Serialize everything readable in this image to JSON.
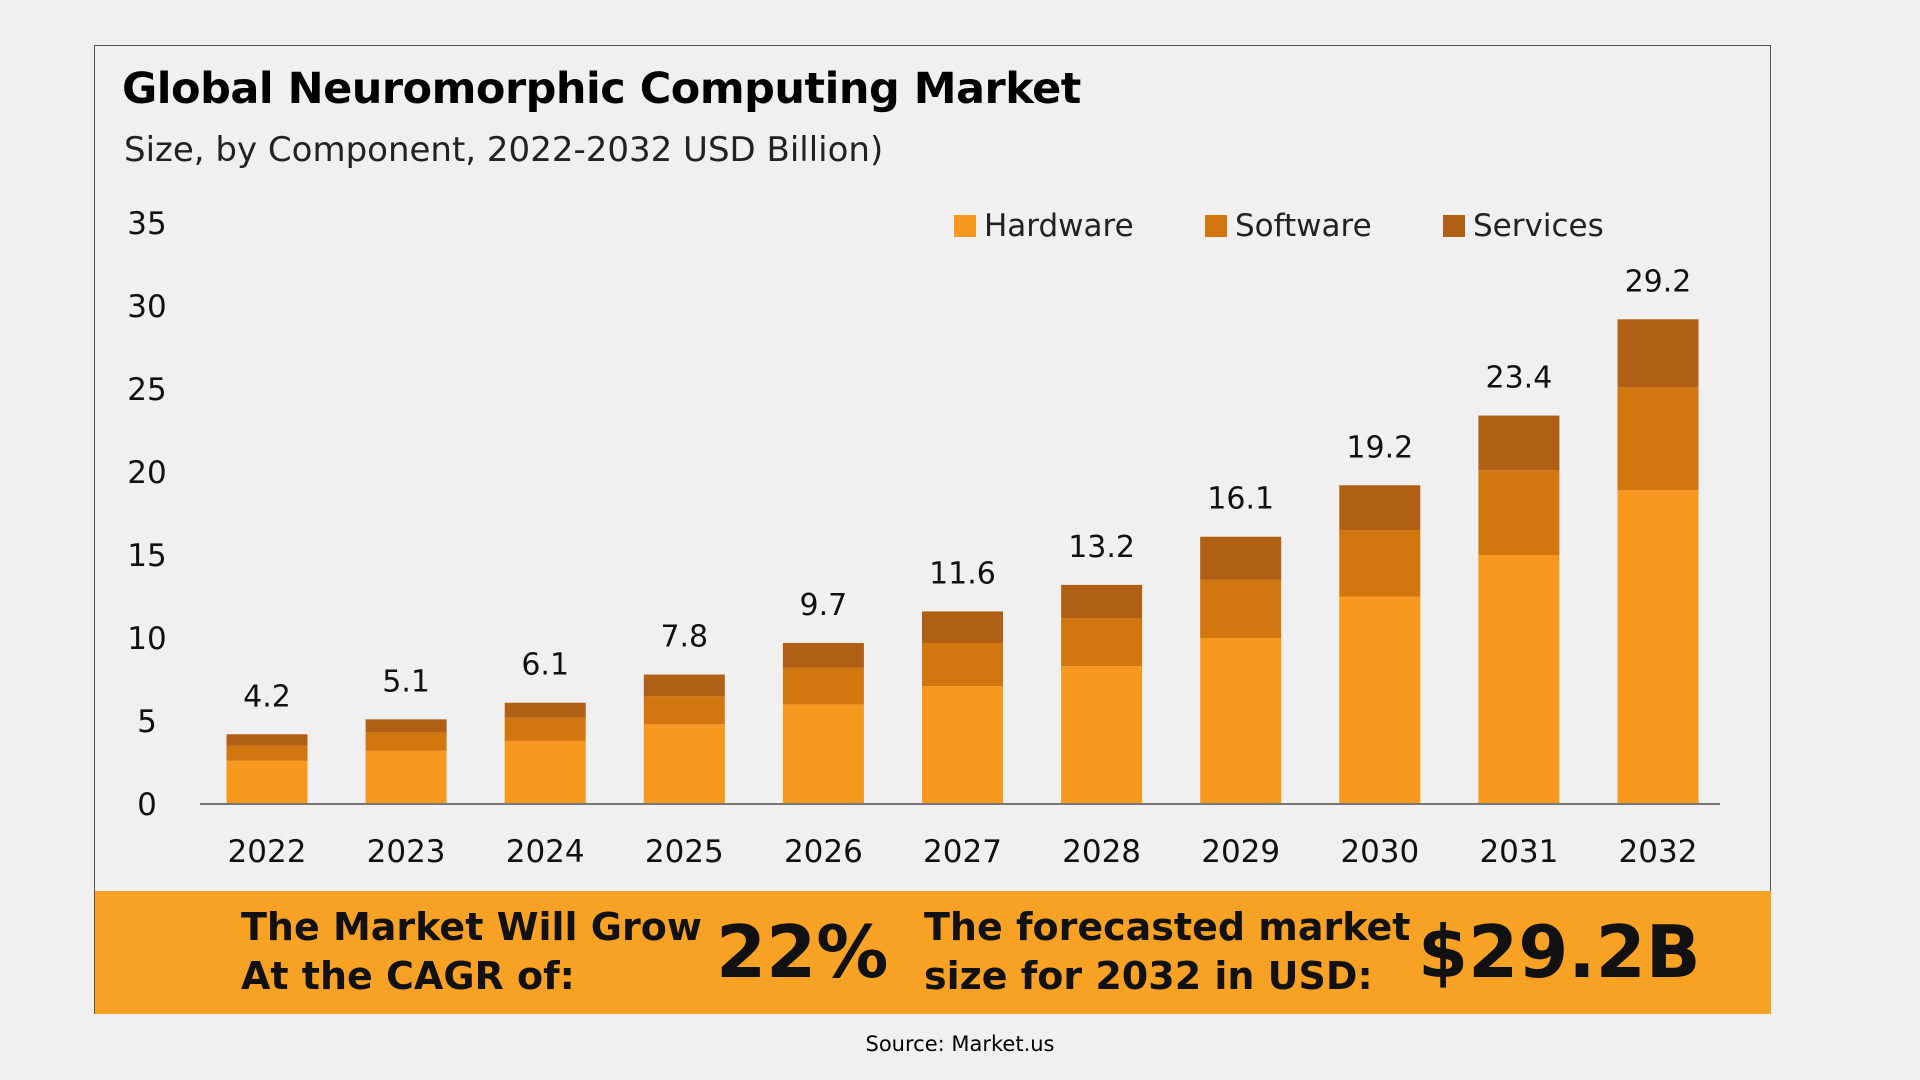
{
  "header": {
    "title": "Global Neuromorphic Computing Market",
    "subtitle": "Size, by Component, 2022-2032 USD Billion)"
  },
  "chart_data": {
    "type": "bar",
    "stacked": true,
    "categories": [
      "2022",
      "2023",
      "2024",
      "2025",
      "2026",
      "2027",
      "2028",
      "2029",
      "2030",
      "2031",
      "2032"
    ],
    "series": [
      {
        "name": "Hardware",
        "color": "#f7991f",
        "values": [
          2.6,
          3.2,
          3.8,
          4.8,
          6.0,
          7.1,
          8.3,
          10.0,
          12.5,
          15.0,
          18.9
        ]
      },
      {
        "name": "Software",
        "color": "#d2760f",
        "values": [
          0.9,
          1.1,
          1.4,
          1.7,
          2.2,
          2.6,
          2.9,
          3.5,
          4.0,
          5.1,
          6.2
        ]
      },
      {
        "name": "Services",
        "color": "#b06015",
        "values": [
          0.7,
          0.8,
          0.9,
          1.3,
          1.5,
          1.9,
          2.0,
          2.6,
          2.7,
          3.3,
          4.1
        ]
      }
    ],
    "totals": [
      "4.2",
      "5.1",
      "6.1",
      "7.8",
      "9.7",
      "11.6",
      "13.2",
      "16.1",
      "19.2",
      "23.4",
      "29.2"
    ],
    "ylim": [
      0,
      35
    ],
    "yticks": [
      "0",
      "5",
      "10",
      "15",
      "20",
      "25",
      "30",
      "35"
    ],
    "grid": false,
    "legend": "top-right"
  },
  "banner": {
    "cagr_text_1": "The Market Will Grow",
    "cagr_text_2": "At the CAGR of:",
    "cagr_value": "22%",
    "forecast_text_1": "The forecasted market",
    "forecast_text_2": "size for 2032 in USD:",
    "forecast_value": "$29.2B",
    "color": "#f7a125"
  },
  "footer": {
    "source": "Source: Market.us"
  }
}
